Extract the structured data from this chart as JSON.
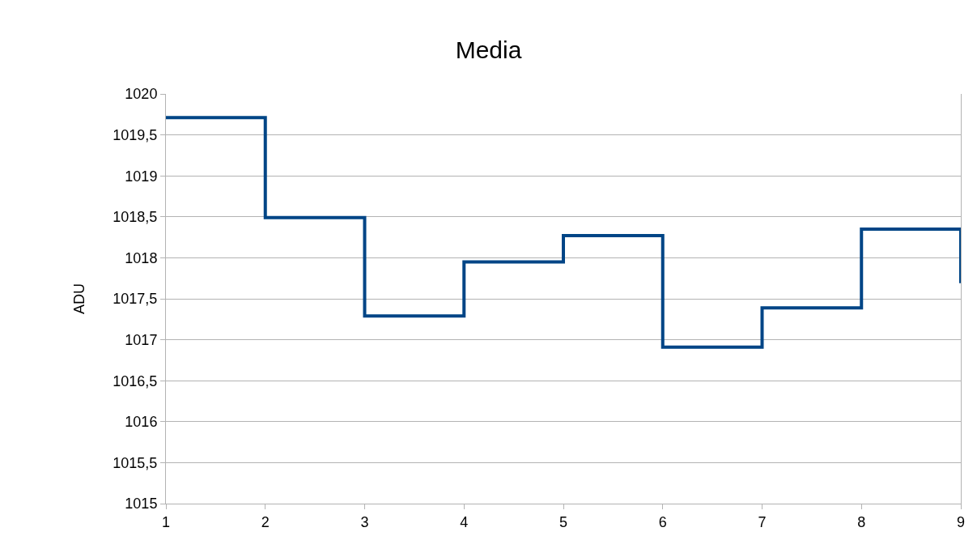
{
  "chart_data": {
    "type": "step",
    "title": "Media",
    "ylabel": "ADU",
    "x": [
      1,
      2,
      3,
      4,
      5,
      6,
      7,
      8,
      9
    ],
    "series": [
      {
        "color": "#004586",
        "values": [
          1019.71,
          1018.49,
          1017.29,
          1017.95,
          1018.27,
          1016.91,
          1017.39,
          1018.35,
          1017.69
        ]
      }
    ],
    "xlim": [
      1,
      9
    ],
    "xticks": [
      1,
      2,
      3,
      4,
      5,
      6,
      7,
      8,
      9
    ],
    "ylim": [
      1015,
      1020
    ],
    "yticks": [
      {
        "value": 1015,
        "label": "1015"
      },
      {
        "value": 1015.5,
        "label": "1015,5"
      },
      {
        "value": 1016,
        "label": "1016"
      },
      {
        "value": 1016.5,
        "label": "1016,5"
      },
      {
        "value": 1017,
        "label": "1017"
      },
      {
        "value": 1017.5,
        "label": "1017,5"
      },
      {
        "value": 1018,
        "label": "1018"
      },
      {
        "value": 1018.5,
        "label": "1018,5"
      },
      {
        "value": 1019,
        "label": "1019"
      },
      {
        "value": 1019.5,
        "label": "1019,5"
      },
      {
        "value": 1020,
        "label": "1020"
      }
    ],
    "grid": "y",
    "marker": "none",
    "line_style": "solid"
  }
}
